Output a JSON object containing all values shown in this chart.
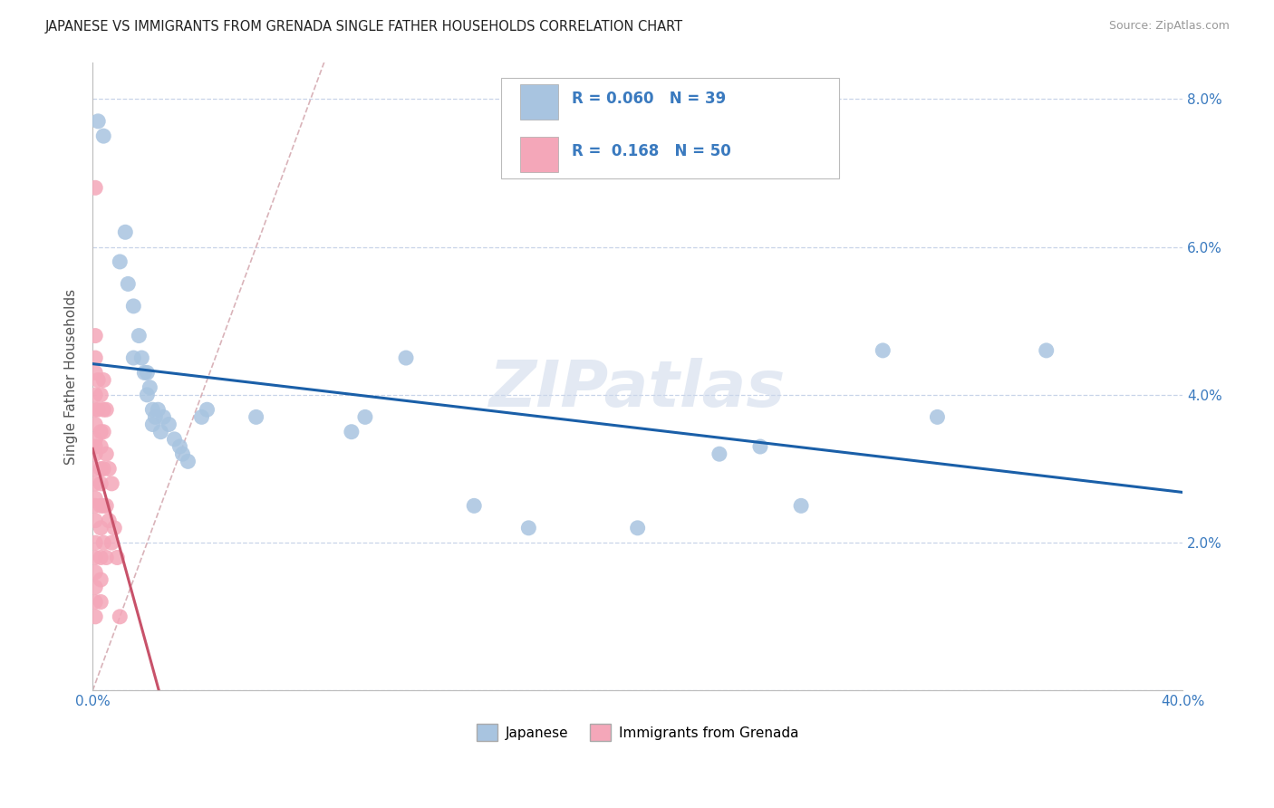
{
  "title": "JAPANESE VS IMMIGRANTS FROM GRENADA SINGLE FATHER HOUSEHOLDS CORRELATION CHART",
  "source": "Source: ZipAtlas.com",
  "ylabel": "Single Father Households",
  "watermark": "ZIPatlas",
  "xlim": [
    0.0,
    0.4
  ],
  "ylim": [
    0.0,
    0.085
  ],
  "ytick_vals": [
    0.0,
    0.02,
    0.04,
    0.06,
    0.08
  ],
  "ytick_labels": [
    "",
    "2.0%",
    "4.0%",
    "6.0%",
    "8.0%"
  ],
  "xtick_vals": [
    0.0,
    0.05,
    0.1,
    0.15,
    0.2,
    0.25,
    0.3,
    0.35,
    0.4
  ],
  "xtick_labels": [
    "0.0%",
    "",
    "",
    "",
    "",
    "",
    "",
    "",
    "40.0%"
  ],
  "japanese_color": "#a8c4e0",
  "grenada_color": "#f4a7b9",
  "japanese_R": 0.06,
  "japanese_N": 39,
  "grenada_R": 0.168,
  "grenada_N": 50,
  "japanese_trend_color": "#1a5fa8",
  "grenada_trend_color": "#c8526a",
  "dashed_line_color": "#d0a0a8",
  "japanese_points": [
    [
      0.002,
      0.077
    ],
    [
      0.004,
      0.075
    ],
    [
      0.01,
      0.058
    ],
    [
      0.012,
      0.062
    ],
    [
      0.013,
      0.055
    ],
    [
      0.015,
      0.052
    ],
    [
      0.015,
      0.045
    ],
    [
      0.017,
      0.048
    ],
    [
      0.018,
      0.045
    ],
    [
      0.019,
      0.043
    ],
    [
      0.02,
      0.043
    ],
    [
      0.02,
      0.04
    ],
    [
      0.021,
      0.041
    ],
    [
      0.022,
      0.038
    ],
    [
      0.022,
      0.036
    ],
    [
      0.023,
      0.037
    ],
    [
      0.024,
      0.038
    ],
    [
      0.025,
      0.035
    ],
    [
      0.026,
      0.037
    ],
    [
      0.028,
      0.036
    ],
    [
      0.03,
      0.034
    ],
    [
      0.032,
      0.033
    ],
    [
      0.033,
      0.032
    ],
    [
      0.035,
      0.031
    ],
    [
      0.04,
      0.037
    ],
    [
      0.042,
      0.038
    ],
    [
      0.06,
      0.037
    ],
    [
      0.095,
      0.035
    ],
    [
      0.1,
      0.037
    ],
    [
      0.115,
      0.045
    ],
    [
      0.14,
      0.025
    ],
    [
      0.16,
      0.022
    ],
    [
      0.2,
      0.022
    ],
    [
      0.23,
      0.032
    ],
    [
      0.245,
      0.033
    ],
    [
      0.26,
      0.025
    ],
    [
      0.29,
      0.046
    ],
    [
      0.31,
      0.037
    ],
    [
      0.35,
      0.046
    ]
  ],
  "grenada_points": [
    [
      0.001,
      0.068
    ],
    [
      0.001,
      0.048
    ],
    [
      0.001,
      0.045
    ],
    [
      0.001,
      0.043
    ],
    [
      0.001,
      0.04
    ],
    [
      0.001,
      0.038
    ],
    [
      0.001,
      0.036
    ],
    [
      0.001,
      0.034
    ],
    [
      0.001,
      0.033
    ],
    [
      0.001,
      0.032
    ],
    [
      0.001,
      0.03
    ],
    [
      0.001,
      0.028
    ],
    [
      0.001,
      0.026
    ],
    [
      0.001,
      0.025
    ],
    [
      0.001,
      0.023
    ],
    [
      0.001,
      0.02
    ],
    [
      0.001,
      0.018
    ],
    [
      0.001,
      0.016
    ],
    [
      0.001,
      0.014
    ],
    [
      0.001,
      0.012
    ],
    [
      0.001,
      0.01
    ],
    [
      0.002,
      0.042
    ],
    [
      0.002,
      0.038
    ],
    [
      0.003,
      0.04
    ],
    [
      0.003,
      0.035
    ],
    [
      0.003,
      0.033
    ],
    [
      0.003,
      0.03
    ],
    [
      0.003,
      0.028
    ],
    [
      0.003,
      0.025
    ],
    [
      0.003,
      0.022
    ],
    [
      0.003,
      0.018
    ],
    [
      0.003,
      0.015
    ],
    [
      0.003,
      0.012
    ],
    [
      0.004,
      0.042
    ],
    [
      0.004,
      0.038
    ],
    [
      0.004,
      0.035
    ],
    [
      0.004,
      0.03
    ],
    [
      0.004,
      0.025
    ],
    [
      0.004,
      0.02
    ],
    [
      0.005,
      0.038
    ],
    [
      0.005,
      0.032
    ],
    [
      0.005,
      0.025
    ],
    [
      0.005,
      0.018
    ],
    [
      0.006,
      0.03
    ],
    [
      0.006,
      0.023
    ],
    [
      0.007,
      0.028
    ],
    [
      0.007,
      0.02
    ],
    [
      0.008,
      0.022
    ],
    [
      0.009,
      0.018
    ],
    [
      0.01,
      0.01
    ]
  ]
}
